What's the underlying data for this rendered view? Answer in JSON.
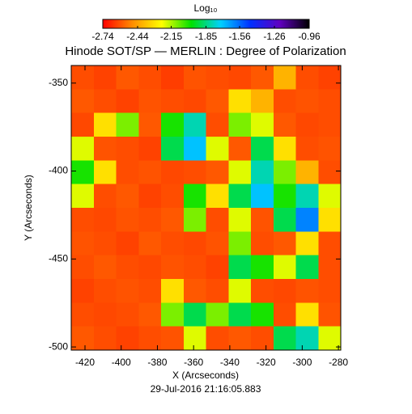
{
  "chart_data": {
    "type": "heatmap",
    "title": "Hinode SOT/SP — MERLIN : Degree of Polarization",
    "colorbar_label": "Log₁₀",
    "xlabel": "X (Arcseconds)",
    "ylabel": "Y (Arcseconds)",
    "footer": "29-Jul-2016 21:16:05.883",
    "xlim": [
      -427.6,
      -278.7
    ],
    "ylim": [
      -501.8,
      -340
    ],
    "xticks": [
      -420,
      -400,
      -380,
      -360,
      -340,
      -320,
      -300,
      -280
    ],
    "yticks": [
      -350,
      -400,
      -450,
      -500
    ],
    "zlim": [
      -2.74,
      -0.96
    ],
    "zticks": [
      -2.74,
      -2.44,
      -2.15,
      -1.85,
      -1.56,
      -1.26,
      -0.96
    ],
    "colormap": [
      "#ff0000",
      "#ff8c00",
      "#ffff00",
      "#00e000",
      "#00d0ff",
      "#0030ff",
      "#6000c0",
      "#000000"
    ],
    "z": [
      [
        -2.6,
        -2.62,
        -2.58,
        -2.6,
        -2.63,
        -2.59,
        -2.6,
        -2.61,
        -2.58,
        -2.4,
        -2.6,
        -2.62
      ],
      [
        -2.58,
        -2.6,
        -2.62,
        -2.59,
        -2.6,
        -2.61,
        -2.58,
        -2.3,
        -2.4,
        -2.6,
        -2.59,
        -2.6
      ],
      [
        -2.61,
        -2.3,
        -2.1,
        -2.58,
        -2.0,
        -1.8,
        -2.6,
        -2.1,
        -2.2,
        -2.58,
        -2.61,
        -2.6
      ],
      [
        -2.2,
        -2.59,
        -2.6,
        -2.62,
        -1.9,
        -1.7,
        -2.2,
        -2.58,
        -1.9,
        -2.3,
        -2.6,
        -2.59
      ],
      [
        -2.0,
        -2.3,
        -2.6,
        -2.59,
        -2.61,
        -2.6,
        -2.58,
        -2.2,
        -1.8,
        -2.1,
        -2.4,
        -2.6
      ],
      [
        -2.2,
        -2.6,
        -2.58,
        -2.62,
        -2.6,
        -2.0,
        -2.3,
        -1.9,
        -1.7,
        -2.0,
        -1.8,
        -2.2
      ],
      [
        -2.6,
        -2.61,
        -2.59,
        -2.6,
        -2.58,
        -2.1,
        -2.6,
        -2.2,
        -2.59,
        -1.9,
        -1.6,
        -2.3
      ],
      [
        -2.59,
        -2.6,
        -2.62,
        -2.58,
        -2.6,
        -2.61,
        -2.59,
        -2.1,
        -2.6,
        -2.58,
        -2.3,
        -2.6
      ],
      [
        -2.6,
        -2.58,
        -2.6,
        -2.61,
        -2.59,
        -2.6,
        -2.62,
        -1.9,
        -2.0,
        -2.2,
        -1.9,
        -2.6
      ],
      [
        -2.62,
        -2.6,
        -2.59,
        -2.6,
        -2.3,
        -2.58,
        -2.6,
        -2.2,
        -2.6,
        -2.61,
        -2.59,
        -2.6
      ],
      [
        -2.6,
        -2.61,
        -2.6,
        -2.58,
        -2.1,
        -1.9,
        -2.1,
        -1.9,
        -2.0,
        -2.6,
        -2.3,
        -2.59
      ],
      [
        -2.58,
        -2.6,
        -2.62,
        -2.6,
        -2.59,
        -2.2,
        -2.6,
        -2.58,
        -2.6,
        -1.9,
        -1.8,
        -2.2
      ]
    ]
  }
}
